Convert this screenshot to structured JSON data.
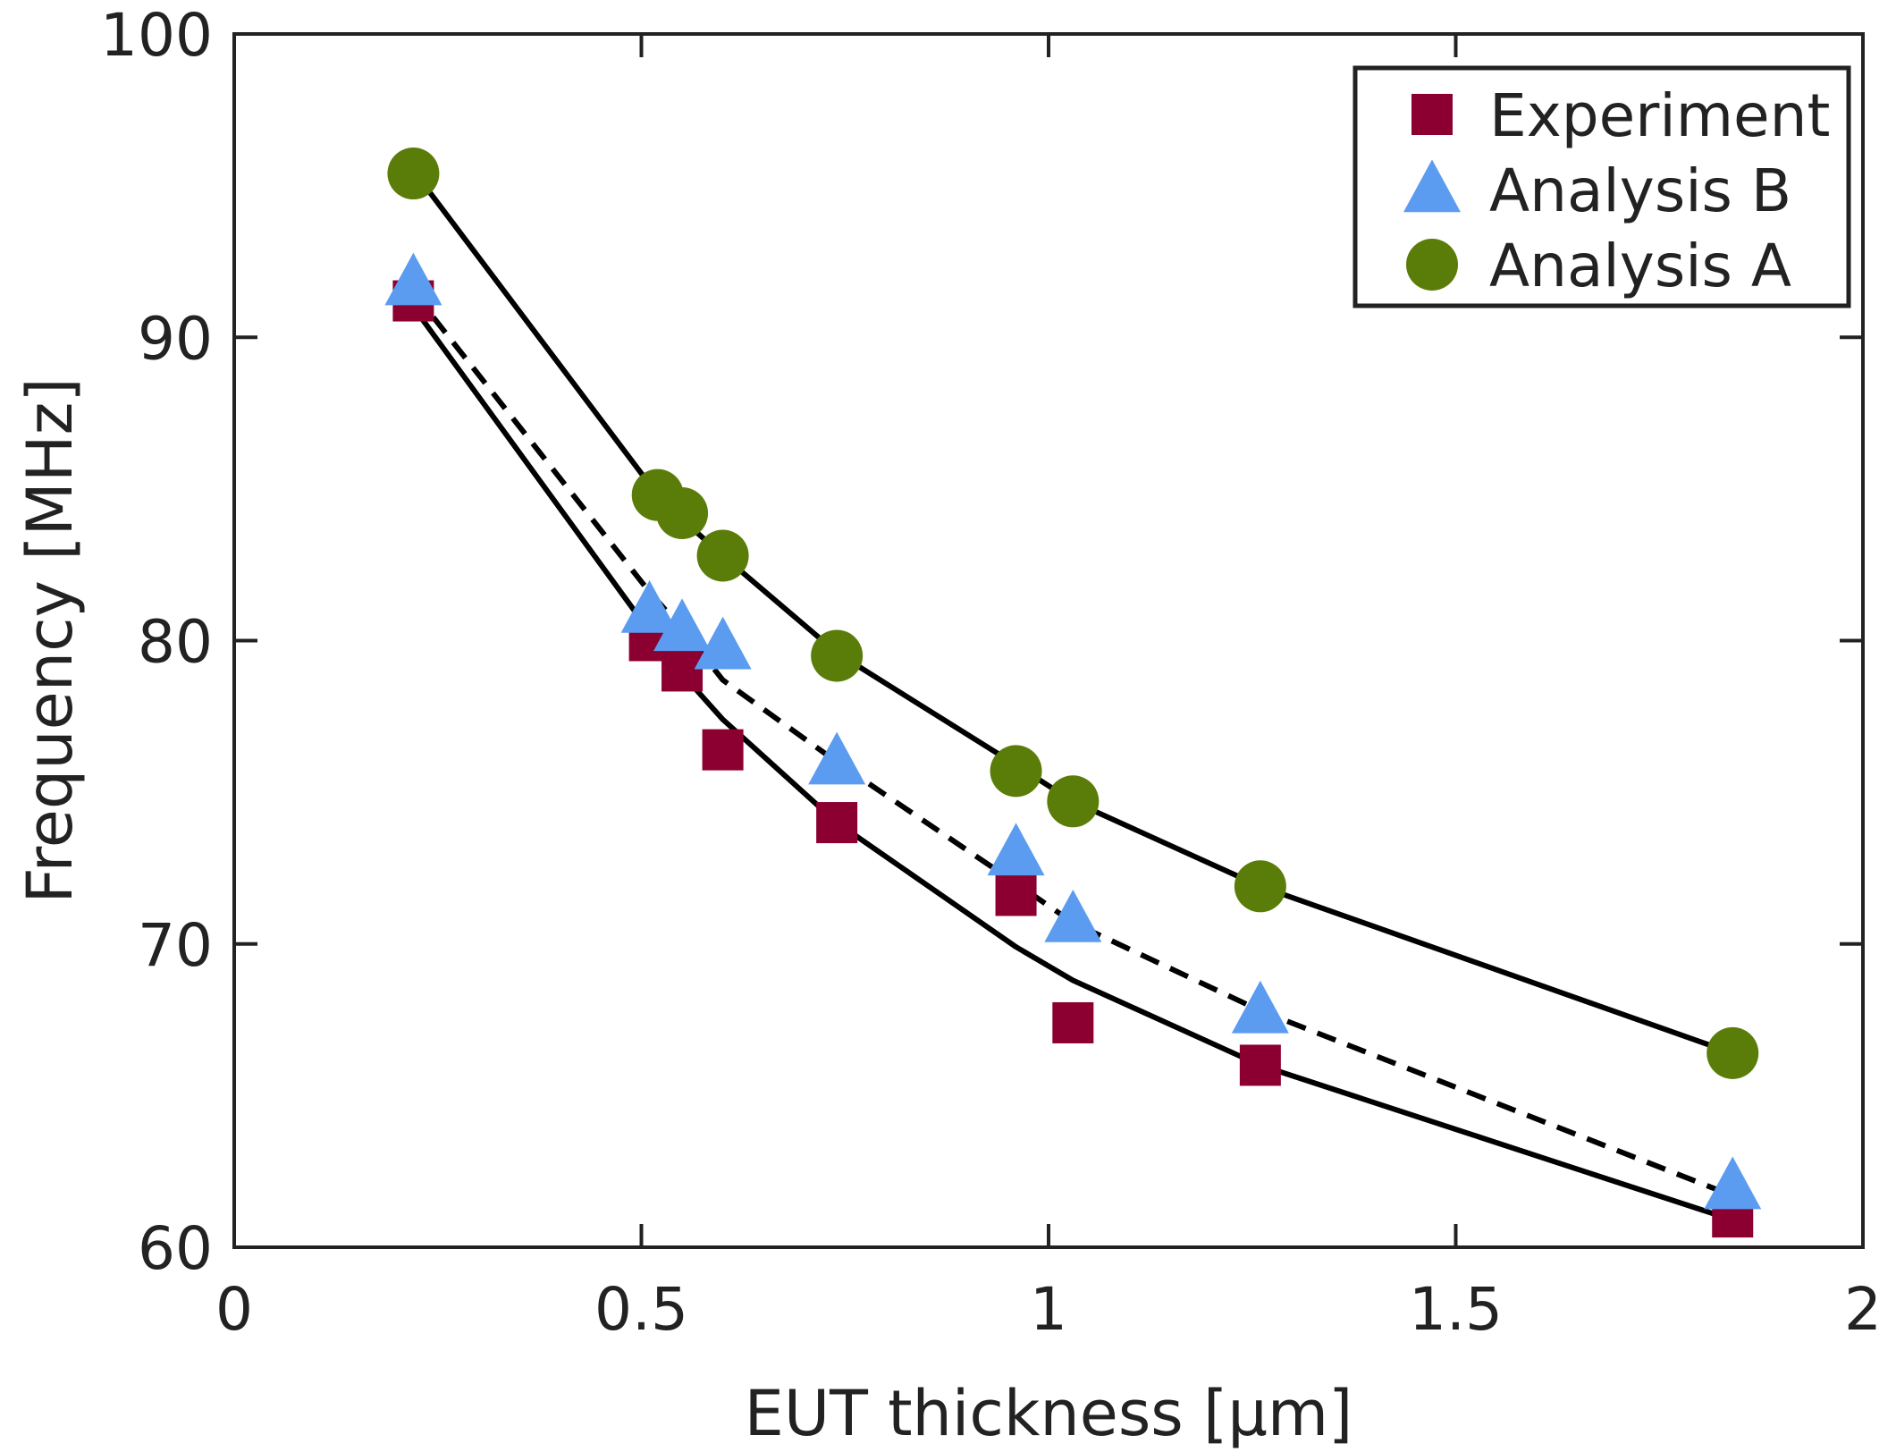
{
  "chart_data": {
    "type": "scatter",
    "title": "",
    "xlabel": "EUT thickness [µm]",
    "ylabel": "Frequency [MHz]",
    "xlim": [
      0,
      2
    ],
    "ylim": [
      60,
      100
    ],
    "xticks": [
      0,
      0.5,
      1,
      1.5,
      2
    ],
    "xtick_labels": [
      "0",
      "0.5",
      "1",
      "1.5",
      "2"
    ],
    "yticks": [
      60,
      70,
      80,
      90,
      100
    ],
    "ytick_labels": [
      "60",
      "70",
      "80",
      "90",
      "100"
    ],
    "grid": false,
    "legend_position": "top-right",
    "series": [
      {
        "name": "Experiment",
        "marker": "square",
        "color": "#8b0030",
        "x": [
          0.22,
          0.51,
          0.55,
          0.6,
          0.74,
          0.96,
          1.03,
          1.26,
          1.84
        ],
        "y": [
          91.2,
          80.0,
          79.0,
          76.4,
          74.0,
          71.6,
          67.4,
          66.0,
          61.0
        ]
      },
      {
        "name": "Analysis B",
        "marker": "triangle",
        "color": "#5b9cf0",
        "x": [
          0.22,
          0.51,
          0.55,
          0.6,
          0.74,
          0.96,
          1.03,
          1.26,
          1.84
        ],
        "y": [
          91.8,
          81.0,
          80.4,
          79.8,
          76.0,
          73.0,
          70.8,
          67.8,
          62.0
        ]
      },
      {
        "name": "Analysis A",
        "marker": "circle",
        "color": "#5a7d0a",
        "x": [
          0.22,
          0.52,
          0.55,
          0.6,
          0.74,
          0.96,
          1.03,
          1.26,
          1.84
        ],
        "y": [
          95.4,
          84.8,
          84.2,
          82.8,
          79.5,
          75.7,
          74.7,
          71.9,
          66.4
        ]
      }
    ],
    "fit_lines": [
      {
        "style": "solid",
        "color": "#000000",
        "x": [
          0.22,
          0.51,
          0.55,
          0.6,
          0.74,
          0.96,
          1.03,
          1.26,
          1.84
        ],
        "y": [
          91.0,
          80.3,
          78.9,
          77.4,
          74.0,
          69.9,
          68.8,
          66.0,
          60.9
        ]
      },
      {
        "style": "dashed",
        "color": "#000000",
        "x": [
          0.22,
          0.51,
          0.55,
          0.6,
          0.74,
          0.96,
          1.03,
          1.26,
          1.84
        ],
        "y": [
          91.5,
          81.6,
          80.4,
          78.7,
          76.0,
          72.0,
          70.7,
          67.8,
          61.7
        ]
      },
      {
        "style": "solid",
        "color": "#000000",
        "x": [
          0.22,
          0.52,
          0.55,
          0.6,
          0.74,
          0.96,
          1.03,
          1.26,
          1.84
        ],
        "y": [
          95.5,
          84.8,
          84.0,
          82.8,
          79.6,
          75.9,
          74.7,
          71.9,
          66.4
        ]
      }
    ]
  }
}
